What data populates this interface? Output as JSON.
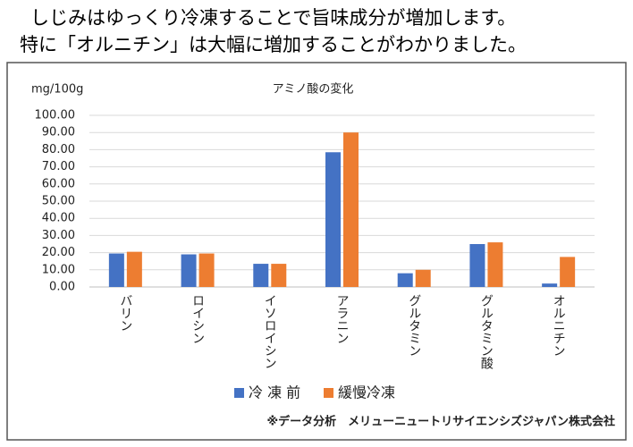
{
  "header": {
    "lines": [
      "しじみはゆっくり冷凍することで旨味成分が増加します。",
      "特に「オルニチン」は大幅に増加することがわかりました。"
    ]
  },
  "chart_data": {
    "type": "bar",
    "title": "アミノ酸の変化",
    "y_label": "mg/100g",
    "categories": [
      "バリン",
      "ロイシン",
      "イソロイシン",
      "アラニン",
      "グルタミン",
      "グルタミン酸",
      "オルニチン"
    ],
    "series": [
      {
        "name": "冷 凍 前",
        "color": "#4472c4",
        "values": [
          19.5,
          19,
          13.5,
          78.5,
          8,
          25,
          2
        ]
      },
      {
        "name": "緩慢冷凍",
        "color": "#ed7d31",
        "values": [
          20.5,
          19.5,
          13.5,
          90,
          10,
          26,
          17.5
        ]
      }
    ],
    "ylim": [
      0,
      100
    ],
    "yticks": [
      {
        "value": 0,
        "label": "0.00"
      },
      {
        "value": 10,
        "label": "10.00"
      },
      {
        "value": 20,
        "label": "20.00"
      },
      {
        "value": 30,
        "label": "30.00"
      },
      {
        "value": 40,
        "label": "40.00"
      },
      {
        "value": 50,
        "label": "50.00"
      },
      {
        "value": 60,
        "label": "60.00"
      },
      {
        "value": 70,
        "label": "70.00"
      },
      {
        "value": 80,
        "label": "80.00"
      },
      {
        "value": 90,
        "label": "90.00"
      },
      {
        "value": 100,
        "label": "100.00"
      }
    ],
    "grid": true,
    "legend": "bottom"
  },
  "footnote": "※データ分析　メリューニュートリサイエンシズジャパン株式会社"
}
